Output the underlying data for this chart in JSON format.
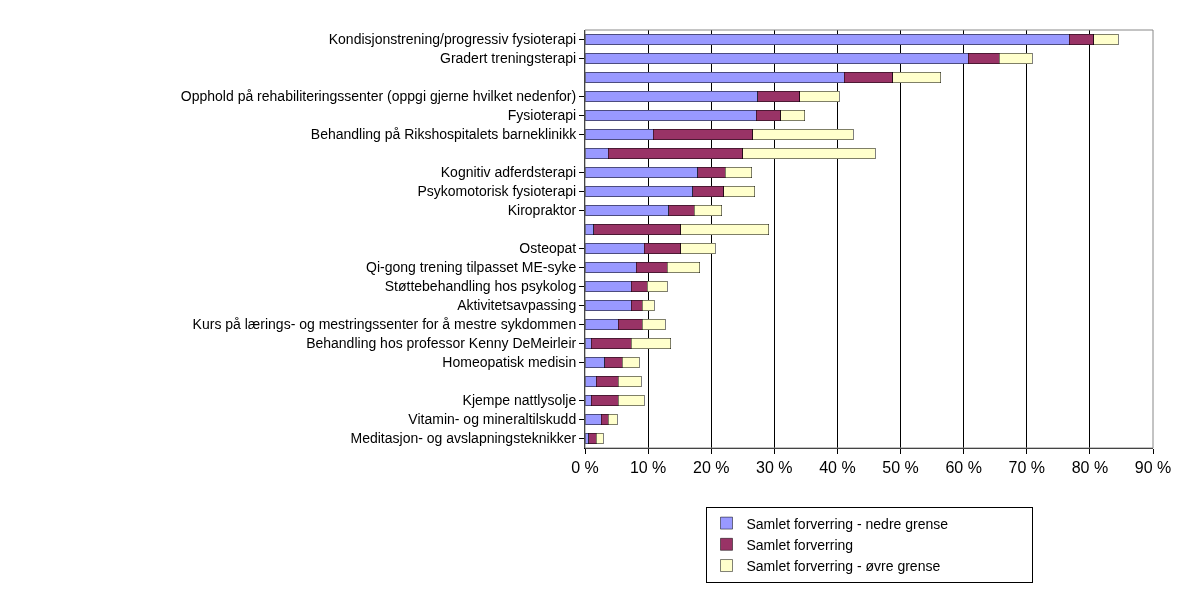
{
  "chart_data": {
    "type": "bar",
    "orientation": "horizontal",
    "stacked": true,
    "categories": [
      "Kondisjonstrening/progressiv fysioterapi",
      "Gradert treningsterapi",
      null,
      "Opphold på rehabiliteringssenter (oppgi gjerne hvilket nedenfor)",
      "Fysioterapi",
      "Behandling på Rikshospitalets barneklinikk",
      null,
      "Kognitiv adferdsterapi",
      "Psykomotorisk fysioterapi",
      "Kiropraktor",
      null,
      "Osteopat",
      "Qi-gong trening tilpasset ME-syke",
      "Støttebehandling hos psykolog",
      "Aktivitetsavpassing",
      "Kurs på lærings- og mestringssenter for å mestre sykdommen",
      "Behandling hos professor Kenny DeMeirleir",
      "Homeopatisk medisin",
      null,
      "Kjempe nattlysolje",
      "Vitamin- og mineraltilskudd",
      "Meditasjon- og avslapningsteknikker"
    ],
    "series": [
      {
        "name": "Samlet forverring - nedre grense",
        "color": "#9999ff",
        "values": [
          76.7,
          60.7,
          41.1,
          27.4,
          27.1,
          10.8,
          3.7,
          17.9,
          17.1,
          13.3,
          1.4,
          9.4,
          8.1,
          7.3,
          7.3,
          5.3,
          1.0,
          3.1,
          1.8,
          1.0,
          2.6,
          0.6
        ]
      },
      {
        "name": "Samlet forverring",
        "color": "#993366",
        "values": [
          3.9,
          4.9,
          7.7,
          6.6,
          3.9,
          15.8,
          21.3,
          4.3,
          4.9,
          4.0,
          13.8,
          5.8,
          4.9,
          2.6,
          1.8,
          3.8,
          6.3,
          2.8,
          3.5,
          4.3,
          1.1,
          1.2
        ]
      },
      {
        "name": "Samlet forverring - øvre grense",
        "color": "#ffffcc",
        "values": [
          3.9,
          5.3,
          7.6,
          6.3,
          3.8,
          15.9,
          21.0,
          4.2,
          4.9,
          4.4,
          13.9,
          5.4,
          5.2,
          3.1,
          1.9,
          3.6,
          6.3,
          2.7,
          3.6,
          4.1,
          1.4,
          1.1
        ]
      }
    ],
    "xlim": [
      0,
      90
    ],
    "xticks": [
      {
        "value": 0,
        "label": "0 %"
      },
      {
        "value": 10,
        "label": "10 %"
      },
      {
        "value": 20,
        "label": "20 %"
      },
      {
        "value": 30,
        "label": "30 %"
      },
      {
        "value": 40,
        "label": "40 %"
      },
      {
        "value": 50,
        "label": "50 %"
      },
      {
        "value": 60,
        "label": "60 %"
      },
      {
        "value": 70,
        "label": "70 %"
      },
      {
        "value": 80,
        "label": "80 %"
      },
      {
        "value": 90,
        "label": "90 %"
      }
    ],
    "grid": "x",
    "legend": "bottom"
  }
}
